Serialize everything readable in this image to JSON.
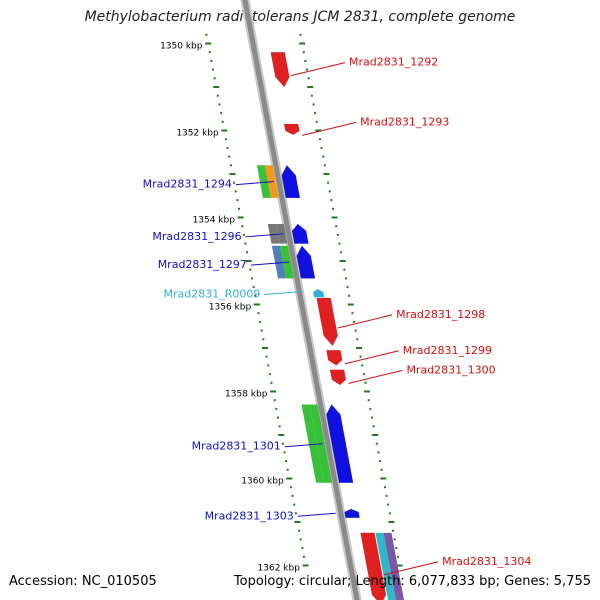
{
  "title": "Methylobacterium radiotolerans JCM 2831, complete genome",
  "footer": {
    "accession": "Accession: NC_010505",
    "topology": "Topology: circular; Length: 6,077,833 bp; Genes: 5,755"
  },
  "colors": {
    "backbone": "#8a8a8a",
    "tick": "#1e7a1e",
    "forward": "#e02020",
    "reverse": "#1010e0",
    "rna": "#30b0d8",
    "gc_green": "#38c038",
    "gc_orange": "#f39a1e",
    "gc_gray": "#777777",
    "gc_steel": "#4f80b8",
    "gc_purple": "#7a58a8",
    "gc_cyan": "#30b8c8"
  },
  "chart_data": {
    "type": "genome-map",
    "kbp_labels": [
      {
        "kbp": 1350,
        "text": "1350 kbp"
      },
      {
        "kbp": 1352,
        "text": "1352 kbp"
      },
      {
        "kbp": 1354,
        "text": "1354 kbp"
      },
      {
        "kbp": 1356,
        "text": "1356 kbp"
      },
      {
        "kbp": 1358,
        "text": "1358 kbp"
      },
      {
        "kbp": 1360,
        "text": "1360 kbp"
      },
      {
        "kbp": 1362,
        "text": "1362 kbp"
      }
    ],
    "genes": [
      {
        "name": "Mrad2831_1292",
        "strand": "forward",
        "start_kbp": 1350.2,
        "end_kbp": 1351.0
      },
      {
        "name": "Mrad2831_1293",
        "strand": "forward",
        "start_kbp": 1351.85,
        "end_kbp": 1352.1
      },
      {
        "name": "Mrad2831_1294",
        "strand": "reverse",
        "start_kbp": 1352.8,
        "end_kbp": 1353.55
      },
      {
        "name": "Mrad2831_1296",
        "strand": "reverse",
        "start_kbp": 1354.15,
        "end_kbp": 1354.6
      },
      {
        "name": "Mrad2831_1297",
        "strand": "reverse",
        "start_kbp": 1354.65,
        "end_kbp": 1355.4
      },
      {
        "name": "Mrad2831_R0009",
        "strand": "rna",
        "start_kbp": 1355.65,
        "end_kbp": 1355.75
      },
      {
        "name": "Mrad2831_1298",
        "strand": "forward",
        "start_kbp": 1355.85,
        "end_kbp": 1356.95
      },
      {
        "name": "Mrad2831_1299",
        "strand": "forward",
        "start_kbp": 1357.05,
        "end_kbp": 1357.4
      },
      {
        "name": "Mrad2831_1300",
        "strand": "forward",
        "start_kbp": 1357.5,
        "end_kbp": 1357.85
      },
      {
        "name": "Mrad2831_1301",
        "strand": "reverse",
        "start_kbp": 1358.3,
        "end_kbp": 1360.1
      },
      {
        "name": "Mrad2831_1303",
        "strand": "reverse",
        "start_kbp": 1360.7,
        "end_kbp": 1360.9
      },
      {
        "name": "Mrad2831_1304",
        "strand": "forward",
        "start_kbp": 1361.25,
        "end_kbp": 1362.9
      }
    ]
  }
}
